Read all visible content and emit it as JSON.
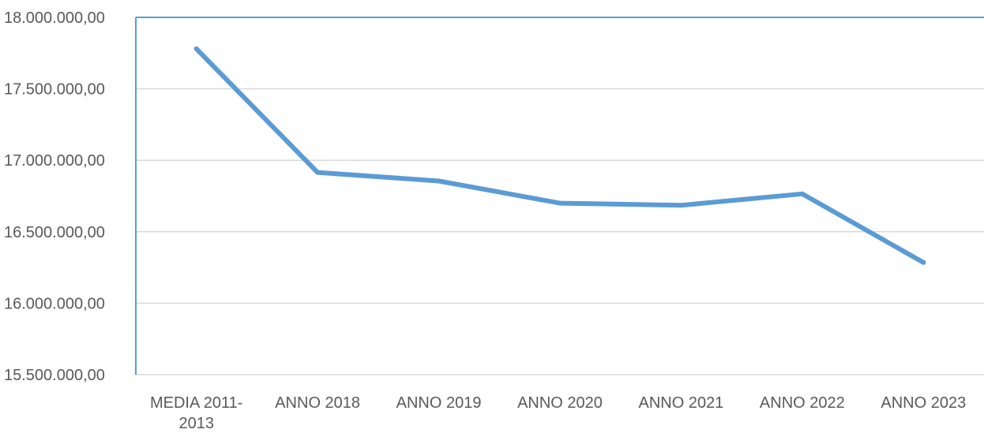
{
  "chart_data": {
    "type": "line",
    "categories": [
      "MEDIA 2011-2013",
      "ANNO 2018",
      "ANNO 2019",
      "ANNO 2020",
      "ANNO 2021",
      "ANNO 2022",
      "ANNO 2023"
    ],
    "category_label_lines": [
      [
        "MEDIA 2011-",
        "2013"
      ],
      [
        "ANNO 2018"
      ],
      [
        "ANNO 2019"
      ],
      [
        "ANNO 2020"
      ],
      [
        "ANNO 2021"
      ],
      [
        "ANNO 2022"
      ],
      [
        "ANNO 2023"
      ]
    ],
    "series": [
      {
        "values": [
          17780000,
          16915000,
          16855000,
          16700000,
          16685000,
          16765000,
          16285000
        ]
      }
    ],
    "ylim": [
      15500000,
      18000000
    ],
    "y_ticks": [
      15500000,
      16000000,
      16500000,
      17000000,
      17500000,
      18000000
    ],
    "y_tick_labels": [
      "15.500.000,00",
      "16.000.000,00",
      "16.500.000,00",
      "17.000.000,00",
      "17.500.000,00",
      "18.000.000,00"
    ],
    "grid": true,
    "colors": {
      "line": "#5b9bd5",
      "grid": "#d9d9d9",
      "axis": "#5b9bd5",
      "text": "#595959"
    }
  }
}
